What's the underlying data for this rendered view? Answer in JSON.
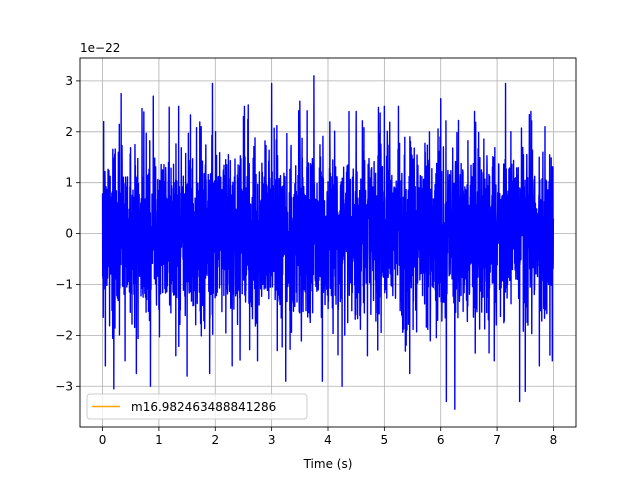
{
  "chart_data": {
    "type": "line",
    "xlabel": "Time (s)",
    "ylabel": "",
    "offset_text": "1e−22",
    "scale": 1e-22,
    "xlim": [
      -0.4,
      8.4
    ],
    "ylim": [
      -3.8e-22,
      3.45e-22
    ],
    "xticks": [
      0,
      1,
      2,
      3,
      4,
      5,
      6,
      7,
      8
    ],
    "xtick_labels": [
      "0",
      "1",
      "2",
      "3",
      "4",
      "5",
      "6",
      "7",
      "8"
    ],
    "yticks": [
      -3e-22,
      -2e-22,
      -1e-22,
      0,
      1e-22,
      2e-22,
      3e-22
    ],
    "ytick_labels": [
      "−3",
      "−2",
      "−1",
      "0",
      "1",
      "2",
      "3"
    ],
    "grid": true,
    "legend_location": "lower-left",
    "series": [
      {
        "name": "",
        "color": "#0000ff",
        "style": "noise",
        "x_range": [
          0,
          8
        ],
        "envelope_typical": [
          -1.7e-22,
          1.7e-22
        ],
        "peaks": [
          {
            "x": 0.02,
            "y": 2.2e-22
          },
          {
            "x": 0.05,
            "y": -2.6e-22
          },
          {
            "x": 0.2,
            "y": -3.05e-22
          },
          {
            "x": 0.33,
            "y": 2.75e-22
          },
          {
            "x": 0.4,
            "y": -2.5e-22
          },
          {
            "x": 0.6,
            "y": -2.75e-22
          },
          {
            "x": 0.85,
            "y": -3e-22
          },
          {
            "x": 0.9,
            "y": 2.7e-22
          },
          {
            "x": 1.3,
            "y": -2.4e-22
          },
          {
            "x": 1.35,
            "y": 2.5e-22
          },
          {
            "x": 1.5,
            "y": -2.8e-22
          },
          {
            "x": 1.75,
            "y": 2.1e-22
          },
          {
            "x": 1.95,
            "y": 2.95e-22
          },
          {
            "x": 1.9,
            "y": -2.75e-22
          },
          {
            "x": 2.3,
            "y": -2.6e-22
          },
          {
            "x": 2.5,
            "y": 2.3e-22
          },
          {
            "x": 2.75,
            "y": -2.5e-22
          },
          {
            "x": 3.0,
            "y": 2.95e-22
          },
          {
            "x": 3.1,
            "y": -2.3e-22
          },
          {
            "x": 3.25,
            "y": -2.9e-22
          },
          {
            "x": 3.5,
            "y": 2.6e-22
          },
          {
            "x": 3.75,
            "y": 3.1e-22
          },
          {
            "x": 3.9,
            "y": -2.9e-22
          },
          {
            "x": 4.25,
            "y": -3e-22
          },
          {
            "x": 4.5,
            "y": 2.4e-22
          },
          {
            "x": 4.7,
            "y": -2.4e-22
          },
          {
            "x": 5.0,
            "y": 2.5e-22
          },
          {
            "x": 5.25,
            "y": 2.5e-22
          },
          {
            "x": 5.45,
            "y": -2.75e-22
          },
          {
            "x": 5.8,
            "y": 2e-22
          },
          {
            "x": 6.0,
            "y": 2.65e-22
          },
          {
            "x": 6.1,
            "y": -3.3e-22
          },
          {
            "x": 6.25,
            "y": -3.45e-22
          },
          {
            "x": 6.6,
            "y": 2.4e-22
          },
          {
            "x": 6.95,
            "y": -2.5e-22
          },
          {
            "x": 7.15,
            "y": 2.95e-22
          },
          {
            "x": 7.4,
            "y": -3.3e-22
          },
          {
            "x": 7.5,
            "y": -3.1e-22
          },
          {
            "x": 7.6,
            "y": 2.4e-22
          },
          {
            "x": 7.75,
            "y": -2.6e-22
          },
          {
            "x": 7.85,
            "y": 2.1e-22
          },
          {
            "x": 7.98,
            "y": -2.5e-22
          }
        ]
      },
      {
        "name": "m16.982463488841286",
        "color": "#ffa500",
        "style": "line",
        "x": [],
        "y": []
      }
    ]
  }
}
